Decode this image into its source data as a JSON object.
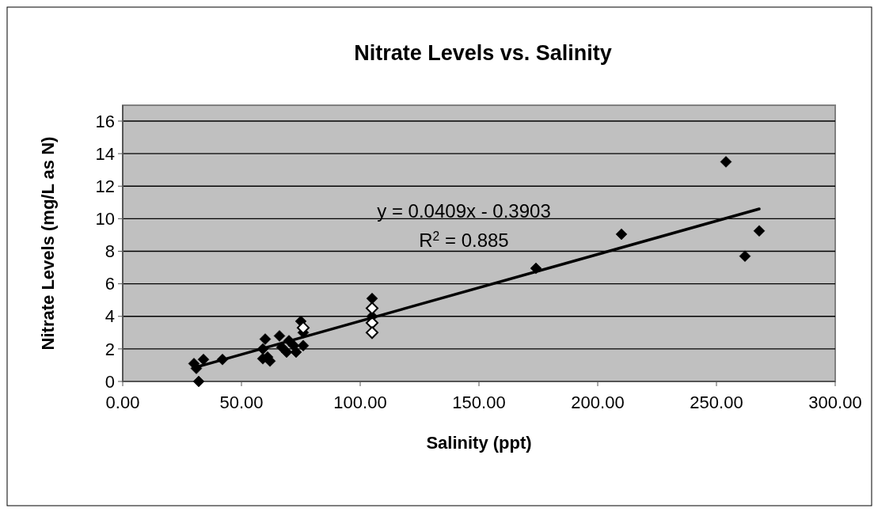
{
  "chart_data": {
    "type": "scatter",
    "title": "Nitrate Levels vs. Salinity",
    "xlabel": "Salinity (ppt)",
    "ylabel": "Nitrate Levels (mg/L as N)",
    "annotations": [
      "y = 0.0409x - 0.3903",
      "R$^{2}$ = 0.885"
    ],
    "xlim": [
      0,
      300
    ],
    "xticks": [
      {
        "value": 0,
        "label": "0.00"
      },
      {
        "value": 50,
        "label": "50.00"
      },
      {
        "value": 100,
        "label": "100.00"
      },
      {
        "value": 150,
        "label": "150.00"
      },
      {
        "value": 200,
        "label": "200.00"
      },
      {
        "value": 250,
        "label": "250.00"
      },
      {
        "value": 300,
        "label": "300.00"
      }
    ],
    "ylim": [
      0,
      16
    ],
    "yticks": [
      0,
      2,
      4,
      6,
      8,
      10,
      12,
      14,
      16
    ],
    "grid": "y",
    "series": [
      {
        "marker": "diamond",
        "color": "#000000",
        "x": [
          30,
          31,
          32,
          34,
          42,
          59,
          59,
          60,
          61,
          62,
          66,
          67,
          69,
          70,
          72,
          73,
          75,
          76,
          76,
          105,
          105,
          174,
          210,
          254,
          262,
          268
        ],
        "values": [
          1.1,
          0.8,
          0,
          1.35,
          1.35,
          1.4,
          2.0,
          2.6,
          1.5,
          1.25,
          2.8,
          2.1,
          1.8,
          2.5,
          2.2,
          1.8,
          3.7,
          2.2,
          3.0,
          5.1,
          4.0,
          6.95,
          9.05,
          13.5,
          7.7,
          9.25
        ]
      },
      {
        "marker": "diamond",
        "color": "#ffffff",
        "x": [
          76,
          105,
          105,
          105
        ],
        "values": [
          3.3,
          4.5,
          3.6,
          3.0
        ]
      },
      {
        "type": "line",
        "marker": "none",
        "color": "#000000",
        "line_style": "solid",
        "x": [
          30,
          268
        ],
        "values": [
          0.84,
          10.6
        ]
      }
    ]
  }
}
